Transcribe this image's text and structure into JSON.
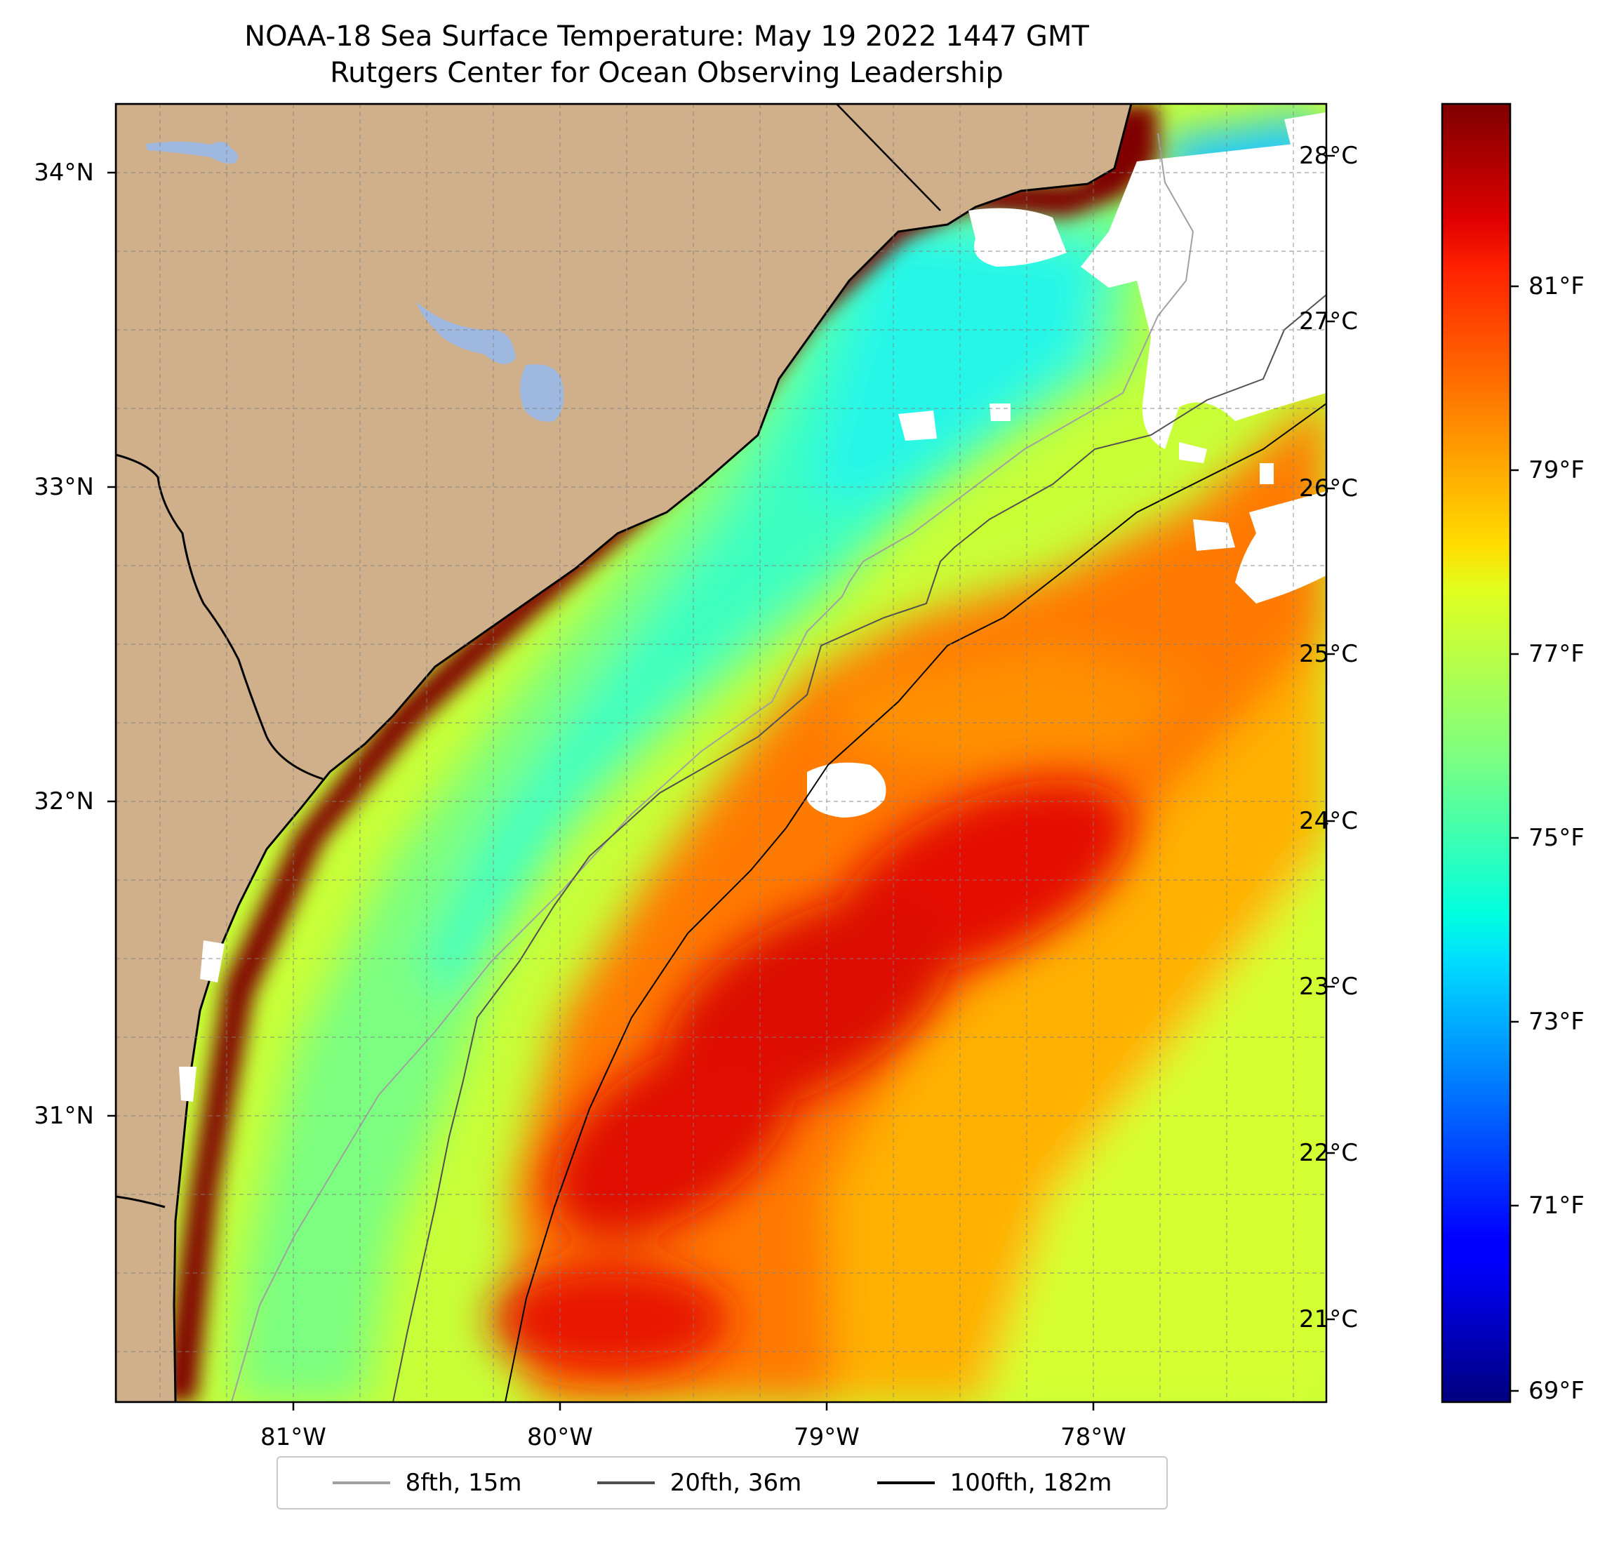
{
  "title": {
    "line1": "NOAA-18 Sea Surface Temperature: May 19 2022 1447 GMT",
    "line2": "Rutgers Center for Ocean Observing Leadership"
  },
  "colors": {
    "land": "#cfb08a",
    "lakes": "#9fb8e0",
    "cloud": "#ffffff",
    "coast": "#000000",
    "contour_8fth": "#a0a0a0",
    "contour_20fth": "#505050",
    "contour_100fth": "#000000"
  },
  "colormap": "jet",
  "map_data": {
    "lat_range": [
      30.05,
      34.2
    ],
    "lon_range": [
      -81.68,
      -77.12
    ],
    "lat_ticks": [
      "34°N",
      "33°N",
      "32°N",
      "31°N"
    ],
    "lon_ticks": [
      "81°W",
      "80°W",
      "79°W",
      "78°W"
    ],
    "grid": true
  },
  "colorbar": {
    "celsius_ticks": [
      "28°C",
      "27°C",
      "26°C",
      "25°C",
      "24°C",
      "23°C",
      "22°C",
      "21°C"
    ],
    "fahrenheit_ticks": [
      "81°F",
      "79°F",
      "77°F",
      "75°F",
      "73°F",
      "71°F",
      "69°F"
    ]
  },
  "legend": {
    "items": [
      {
        "label": "8fth, 15m",
        "color": "#a0a0a0"
      },
      {
        "label": "20fth, 36m",
        "color": "#505050"
      },
      {
        "label": "100fth, 182m",
        "color": "#000000"
      }
    ]
  }
}
